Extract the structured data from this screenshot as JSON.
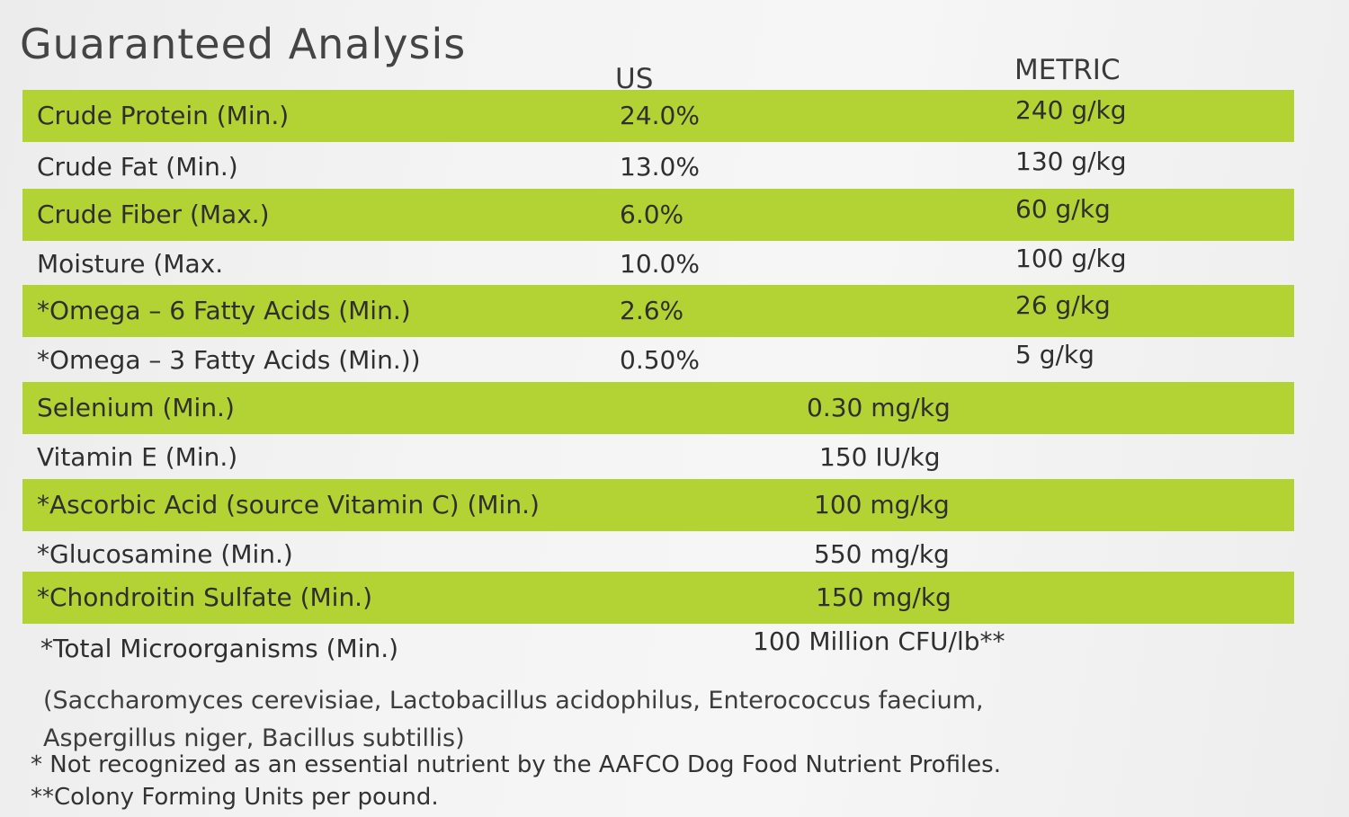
{
  "title": "Guaranteed Analysis",
  "headers": {
    "us": "US",
    "metric": "METRIC"
  },
  "rows": [
    {
      "label": "Crude Protein (Min.)",
      "us": "24.0%",
      "metric": "240 g/kg"
    },
    {
      "label": "Crude Fat (Min.)",
      "us": "13.0%",
      "metric": "130 g/kg"
    },
    {
      "label": "Crude Fiber (Max.)",
      "us": "6.0%",
      "metric": "60 g/kg"
    },
    {
      "label": "Moisture (Max.",
      "us": "10.0%",
      "metric": "100 g/kg"
    },
    {
      "label": "*Omega – 6 Fatty Acids (Min.)",
      "us": "2.6%",
      "metric": "26 g/kg"
    },
    {
      "label": "*Omega – 3 Fatty Acids (Min.))",
      "us": "0.50%",
      "metric": "5 g/kg"
    },
    {
      "label": "Selenium (Min.)",
      "value": "0.30 mg/kg"
    },
    {
      "label": "Vitamin E  (Min.)",
      "value": "150 IU/kg"
    },
    {
      "label": "*Ascorbic Acid (source Vitamin C) (Min.)",
      "value": "100 mg/kg"
    },
    {
      "label": "*Glucosamine (Min.)",
      "value": "550 mg/kg"
    },
    {
      "label": "*Chondroitin Sulfate (Min.)",
      "value": "150 mg/kg"
    },
    {
      "label": "*Total Microorganisms (Min.)",
      "value": "100 Million CFU/lb**"
    }
  ],
  "organisms_line1": "(Saccharomyces cerevisiae, Lactobacillus acidophilus, Enterococcus faecium,",
  "organisms_line2": "Aspergillus niger, Bacillus subtillis)",
  "footnote1": "* Not recognized as an essential nutrient by the AAFCO Dog Food Nutrient Profiles.",
  "footnote2": "**Colony Forming Units per pound.",
  "colors": {
    "stripe": "#b3d334",
    "text": "#333333"
  }
}
